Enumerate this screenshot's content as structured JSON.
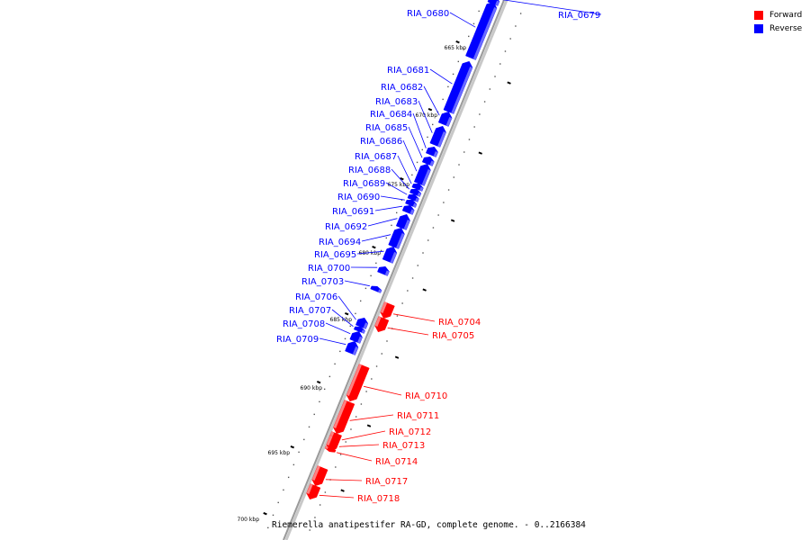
{
  "caption": "Riemerella anatipestifer RA-GD, complete genome. - 0..2166384",
  "colors": {
    "forward": "#ff0000",
    "reverse": "#0000ff",
    "backbone": "#999999"
  },
  "legend": [
    {
      "label": "Forward",
      "color": "#ff0000"
    },
    {
      "label": "Reverse",
      "color": "#0000ff"
    }
  ],
  "ticks": [
    {
      "label": "665 kbp"
    },
    {
      "label": "670 kbp"
    },
    {
      "label": "675 kbp"
    },
    {
      "label": "680 kbp"
    },
    {
      "label": "685 kbp"
    },
    {
      "label": "690 kbp"
    },
    {
      "label": "695 kbp"
    },
    {
      "label": "700 kbp"
    }
  ],
  "genes": [
    {
      "name": "RIA_0679",
      "strand": "reverse"
    },
    {
      "name": "RIA_0680",
      "strand": "reverse"
    },
    {
      "name": "RIA_0681",
      "strand": "reverse"
    },
    {
      "name": "RIA_0682",
      "strand": "reverse"
    },
    {
      "name": "RIA_0683",
      "strand": "reverse"
    },
    {
      "name": "RIA_0684",
      "strand": "reverse"
    },
    {
      "name": "RIA_0685",
      "strand": "reverse"
    },
    {
      "name": "RIA_0686",
      "strand": "reverse"
    },
    {
      "name": "RIA_0687",
      "strand": "reverse"
    },
    {
      "name": "RIA_0688",
      "strand": "reverse"
    },
    {
      "name": "RIA_0689",
      "strand": "reverse"
    },
    {
      "name": "RIA_0690",
      "strand": "reverse"
    },
    {
      "name": "RIA_0691",
      "strand": "reverse"
    },
    {
      "name": "RIA_0692",
      "strand": "reverse"
    },
    {
      "name": "RIA_0694",
      "strand": "reverse"
    },
    {
      "name": "RIA_0695",
      "strand": "reverse"
    },
    {
      "name": "RIA_0700",
      "strand": "reverse"
    },
    {
      "name": "RIA_0703",
      "strand": "reverse"
    },
    {
      "name": "RIA_0704",
      "strand": "forward"
    },
    {
      "name": "RIA_0705",
      "strand": "forward"
    },
    {
      "name": "RIA_0706",
      "strand": "reverse"
    },
    {
      "name": "RIA_0707",
      "strand": "reverse"
    },
    {
      "name": "RIA_0708",
      "strand": "reverse"
    },
    {
      "name": "RIA_0709",
      "strand": "reverse"
    },
    {
      "name": "RIA_0710",
      "strand": "forward"
    },
    {
      "name": "RIA_0711",
      "strand": "forward"
    },
    {
      "name": "RIA_0712",
      "strand": "forward"
    },
    {
      "name": "RIA_0713",
      "strand": "forward"
    },
    {
      "name": "RIA_0714",
      "strand": "forward"
    },
    {
      "name": "RIA_0717",
      "strand": "forward"
    },
    {
      "name": "RIA_0718",
      "strand": "forward"
    }
  ]
}
